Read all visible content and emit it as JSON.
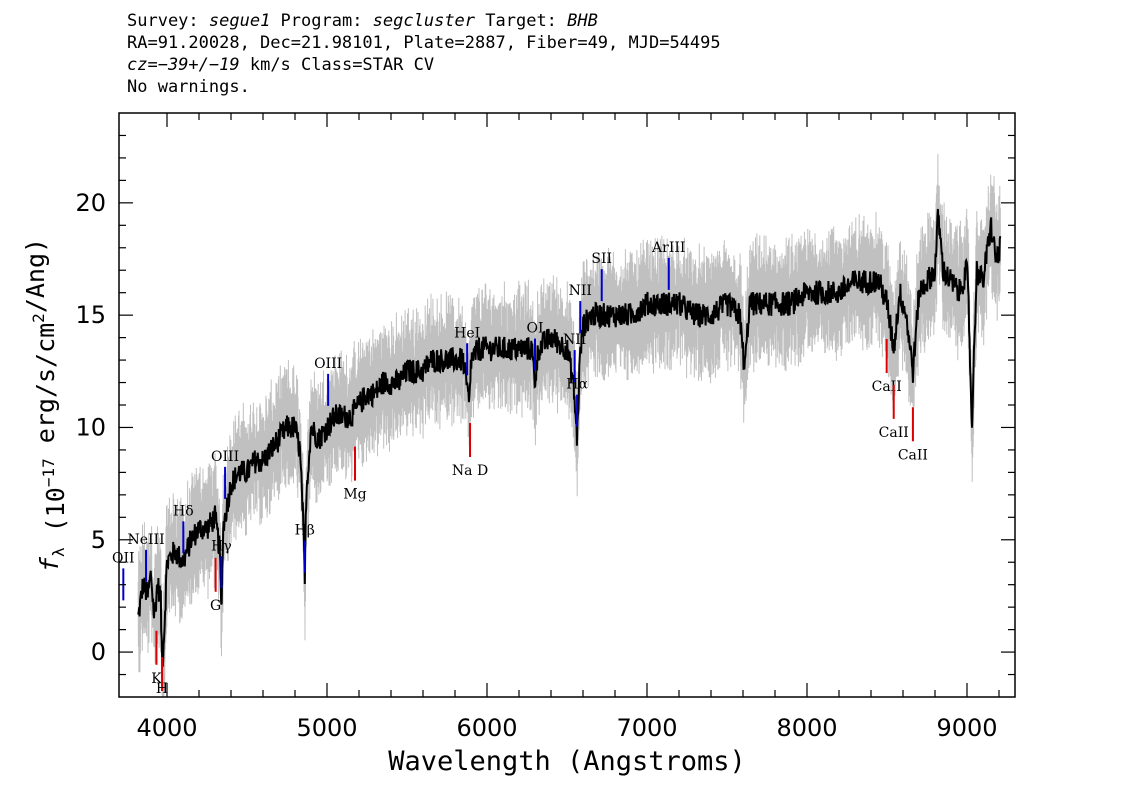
{
  "header": {
    "survey_label": "Survey: ",
    "survey": "segue1",
    "program_label": " Program: ",
    "program": "segcluster",
    "target_label": " Target: ",
    "target": "BHB",
    "line2": "RA=91.20028, Dec=21.98101, Plate=2887, Fiber=49, MJD=54495",
    "cz_label": "cz",
    "cz_value": "=−39+/−19",
    "cz_rest": " km/s Class=STAR CV",
    "line4": "No warnings."
  },
  "colors": {
    "flux": "#000000",
    "error_band": "#c0c0c0",
    "emission_line": "#0000cc",
    "absorption_line": "#dd0000"
  },
  "chart_data": {
    "type": "line",
    "xlabel": "Wavelength (Angstroms)",
    "ylabel": "f_λ (10^-17 erg/s/cm^2/Ang)",
    "xlim": [
      3700,
      9300
    ],
    "ylim": [
      -2,
      24
    ],
    "x_ticks": [
      4000,
      5000,
      6000,
      7000,
      8000,
      9000
    ],
    "y_ticks": [
      0,
      5,
      10,
      15,
      20
    ],
    "grid": false,
    "series": [
      {
        "role": "flux",
        "x": [
          3820,
          3850,
          3880,
          3900,
          3920,
          3940,
          3960,
          3970,
          3980,
          4000,
          4050,
          4100,
          4150,
          4200,
          4250,
          4300,
          4330,
          4340,
          4350,
          4400,
          4450,
          4500,
          4550,
          4600,
          4650,
          4700,
          4750,
          4800,
          4830,
          4850,
          4861,
          4870,
          4900,
          4950,
          5000,
          5050,
          5100,
          5150,
          5200,
          5250,
          5300,
          5350,
          5400,
          5450,
          5500,
          5550,
          5600,
          5650,
          5700,
          5750,
          5800,
          5850,
          5890,
          5900,
          5950,
          6000,
          6100,
          6200,
          6280,
          6300,
          6320,
          6400,
          6500,
          6540,
          6563,
          6580,
          6600,
          6650,
          6700,
          6800,
          6900,
          7000,
          7100,
          7200,
          7300,
          7400,
          7500,
          7580,
          7610,
          7640,
          7700,
          7800,
          7900,
          8000,
          8100,
          8200,
          8300,
          8400,
          8450,
          8500,
          8542,
          8580,
          8620,
          8662,
          8700,
          8750,
          8800,
          8820,
          8850,
          8900,
          8950,
          9000,
          9010,
          9030,
          9060,
          9100,
          9150,
          9180,
          9210
        ],
        "y": [
          1.5,
          3.0,
          2.5,
          3.5,
          1.5,
          3.0,
          2.5,
          -0.5,
          0.5,
          4.0,
          4.5,
          4.0,
          5.0,
          5.5,
          5.5,
          6.0,
          4.5,
          1.5,
          5.5,
          7.5,
          8.0,
          8.0,
          8.5,
          8.5,
          9.0,
          9.5,
          10.0,
          10.0,
          9.0,
          6.0,
          3.0,
          7.0,
          10.0,
          9.5,
          10.0,
          10.5,
          10.5,
          10.5,
          11.0,
          11.5,
          11.5,
          12.0,
          12.0,
          12.0,
          12.5,
          12.5,
          12.5,
          13.0,
          13.0,
          13.0,
          13.0,
          13.0,
          11.0,
          13.0,
          13.5,
          13.5,
          13.5,
          13.5,
          13.5,
          12.0,
          13.5,
          14.0,
          13.5,
          12.0,
          9.5,
          13.0,
          14.5,
          15.0,
          15.0,
          15.0,
          15.0,
          15.5,
          15.5,
          15.5,
          15.0,
          15.0,
          15.5,
          15.0,
          12.5,
          15.5,
          15.5,
          15.5,
          15.5,
          16.0,
          16.0,
          16.0,
          16.5,
          16.5,
          16.5,
          15.5,
          13.5,
          16.0,
          15.0,
          12.5,
          16.0,
          16.5,
          17.0,
          19.5,
          17.0,
          16.5,
          16.0,
          17.0,
          15.5,
          10.0,
          17.0,
          16.5,
          19.0,
          17.5,
          18.0
        ]
      }
    ],
    "annotations": [
      {
        "label": "OII",
        "x": 3727,
        "kind": "emission"
      },
      {
        "label": "NeIII",
        "x": 3869,
        "kind": "emission"
      },
      {
        "label": "Hδ",
        "x": 4102,
        "kind": "emission"
      },
      {
        "label": "Hγ",
        "x": 4340,
        "kind": "emission"
      },
      {
        "label": "OIII",
        "x": 4363,
        "kind": "emission"
      },
      {
        "label": "Hβ",
        "x": 4861,
        "kind": "emission"
      },
      {
        "label": "OIII",
        "x": 5007,
        "kind": "emission"
      },
      {
        "label": "HeI",
        "x": 5876,
        "kind": "emission"
      },
      {
        "label": "OI",
        "x": 6300,
        "kind": "emission"
      },
      {
        "label": "NII",
        "x": 6548,
        "kind": "emission"
      },
      {
        "label": "Hα",
        "x": 6563,
        "kind": "emission"
      },
      {
        "label": "NII",
        "x": 6583,
        "kind": "emission"
      },
      {
        "label": "SII",
        "x": 6717,
        "kind": "emission"
      },
      {
        "label": "ArIII",
        "x": 7136,
        "kind": "emission"
      },
      {
        "label": "K",
        "x": 3934,
        "kind": "absorption"
      },
      {
        "label": "H",
        "x": 3969,
        "kind": "absorption"
      },
      {
        "label": "G",
        "x": 4304,
        "kind": "absorption"
      },
      {
        "label": "Mg",
        "x": 5175,
        "kind": "absorption"
      },
      {
        "label": "Na D",
        "x": 5894,
        "kind": "absorption"
      },
      {
        "label": "CaII",
        "x": 8498,
        "kind": "absorption"
      },
      {
        "label": "CaII",
        "x": 8542,
        "kind": "absorption"
      },
      {
        "label": "CaII",
        "x": 8662,
        "kind": "absorption"
      }
    ]
  }
}
